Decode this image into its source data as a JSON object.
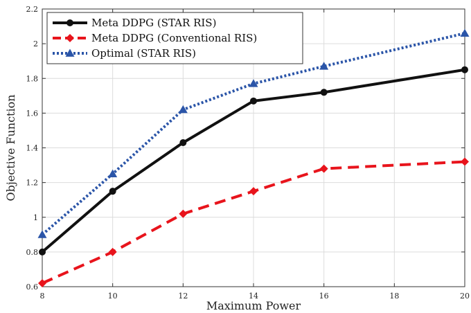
{
  "chart_data": {
    "type": "line",
    "xlabel": "Maximum Power",
    "ylabel": "Objective Function",
    "xlim": [
      8,
      20
    ],
    "ylim": [
      0.6,
      2.2
    ],
    "xticks": [
      8,
      10,
      12,
      14,
      16,
      18,
      20
    ],
    "yticks": [
      0.6,
      0.8,
      1,
      1.2,
      1.4,
      1.6,
      1.8,
      2,
      2.2
    ],
    "grid": true,
    "legend_position": "top-left",
    "x": [
      8,
      10,
      12,
      14,
      16,
      20
    ],
    "series": [
      {
        "name": "Meta DDPG (STAR RIS)",
        "values": [
          0.8,
          1.15,
          1.43,
          1.67,
          1.72,
          1.85
        ],
        "color": "#111111",
        "line_style": "solid",
        "marker": "circle"
      },
      {
        "name": "Meta DDPG (Conventional RIS)",
        "values": [
          0.62,
          0.8,
          1.02,
          1.15,
          1.28,
          1.32
        ],
        "color": "#e8141c",
        "line_style": "dashed",
        "marker": "diamond"
      },
      {
        "name": "Optimal (STAR RIS)",
        "values": [
          0.9,
          1.25,
          1.62,
          1.77,
          1.87,
          2.06
        ],
        "color": "#2b55a8",
        "line_style": "dotted",
        "marker": "triangle"
      }
    ]
  }
}
